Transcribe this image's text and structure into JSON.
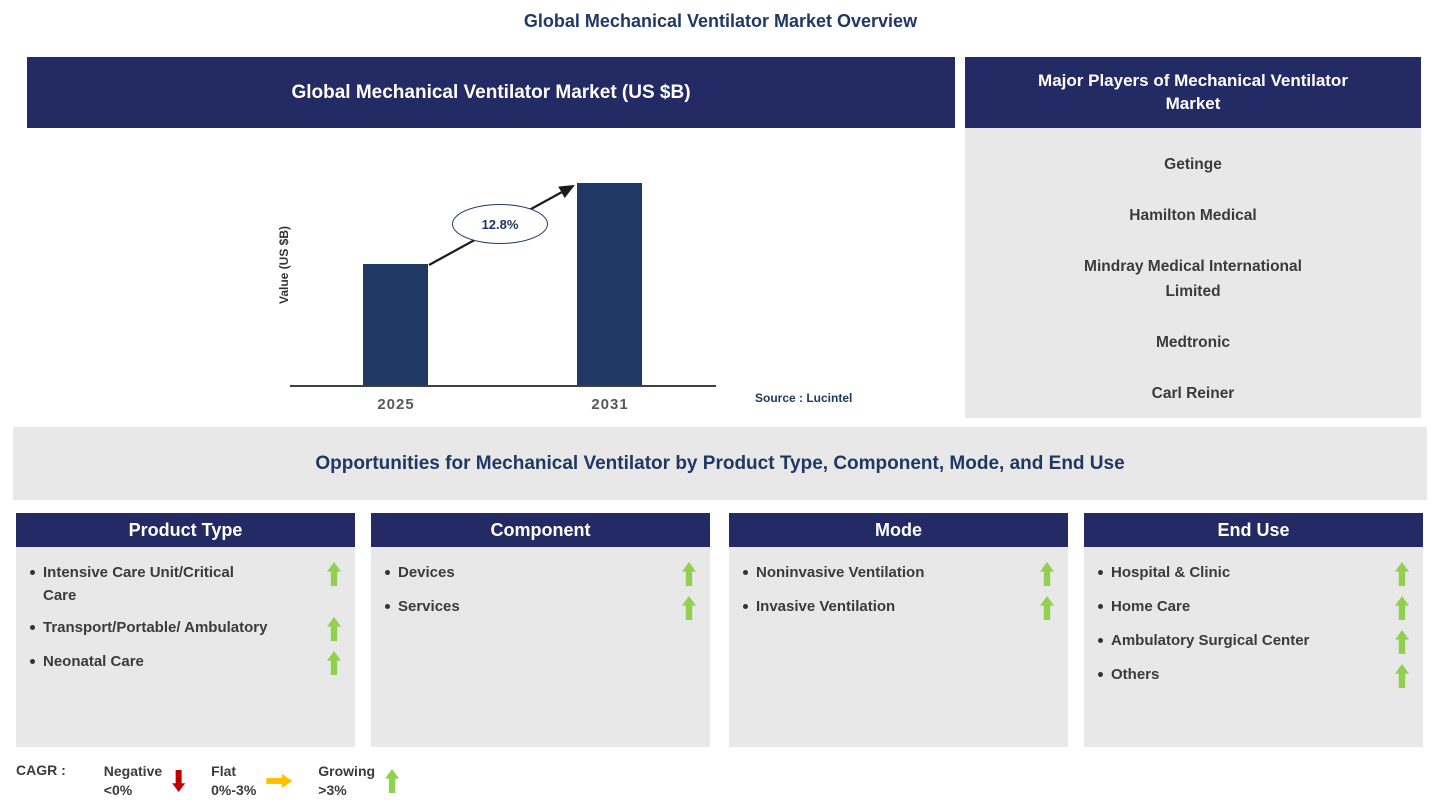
{
  "page_title": "Global Mechanical Ventilator Market Overview",
  "market_chart": {
    "header": "Global Mechanical Ventilator Market (US $B)",
    "y_axis_label": "Value (US $B)",
    "cagr_label": "12.8%",
    "source": "Source : Lucintel"
  },
  "chart_data": {
    "type": "bar",
    "title": "Global Mechanical Ventilator Market (US $B)",
    "categories": [
      "2025",
      "2031"
    ],
    "values": [
      3,
      5
    ],
    "values_estimated": true,
    "ylabel": "Value (US $B)",
    "xlabel": "",
    "ylim": [
      0,
      5.8
    ],
    "grid": false,
    "annotations": [
      {
        "text": "12.8%",
        "meaning": "CAGR between 2025 and 2031 bars"
      }
    ]
  },
  "major_players": {
    "header": "Major Players of Mechanical Ventilator Market",
    "players": [
      "Getinge",
      "Hamilton Medical",
      "Mindray Medical International Limited",
      "Medtronic",
      "Carl Reiner"
    ]
  },
  "opportunities": {
    "title": "Opportunities for Mechanical Ventilator by Product Type, Component, Mode, and End Use",
    "columns": [
      {
        "header": "Product Type",
        "items": [
          {
            "label": "Intensive Care Unit/Critical Care",
            "trend": "growing"
          },
          {
            "label": "Transport/Portable/ Ambulatory",
            "trend": "growing"
          },
          {
            "label": "Neonatal Care",
            "trend": "growing"
          }
        ]
      },
      {
        "header": "Component",
        "items": [
          {
            "label": "Devices",
            "trend": "growing"
          },
          {
            "label": "Services",
            "trend": "growing"
          }
        ]
      },
      {
        "header": "Mode",
        "items": [
          {
            "label": "Noninvasive Ventilation",
            "trend": "growing"
          },
          {
            "label": "Invasive Ventilation",
            "trend": "growing"
          }
        ]
      },
      {
        "header": "End Use",
        "items": [
          {
            "label": "Hospital & Clinic",
            "trend": "growing"
          },
          {
            "label": "Home Care",
            "trend": "growing"
          },
          {
            "label": "Ambulatory Surgical Center",
            "trend": "growing"
          },
          {
            "label": "Others",
            "trend": "growing"
          }
        ]
      }
    ]
  },
  "legend": {
    "title": "CAGR :",
    "items": [
      {
        "label": "Negative",
        "range": "<0%",
        "trend": "negative"
      },
      {
        "label": "Flat",
        "range": "0%-3%",
        "trend": "flat"
      },
      {
        "label": "Growing",
        "range": ">3%",
        "trend": "growing"
      }
    ]
  },
  "colors": {
    "header_navy": "#242A64",
    "bar_navy": "#1F3864",
    "panel_gray": "#E8E8E8",
    "accent_blue": "#1F3864",
    "growing_green": "#92D050",
    "negative_red": "#C00000",
    "flat_amber": "#FFC000"
  }
}
